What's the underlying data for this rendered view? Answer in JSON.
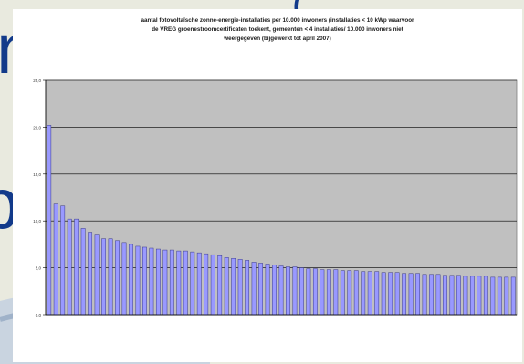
{
  "slide": {
    "colors": {
      "background": "#e9eadf",
      "swoosh": "#9fb2c9",
      "glyph": "#123a8a"
    },
    "glyphs": [
      "n",
      "bo",
      "("
    ]
  },
  "chart_data": {
    "type": "bar",
    "title": "aantal fotovoltaïsche zonne-energie-installaties per 10.000 inwoners (installaties < 10 kWp waarvoor\nde VREG groenestroomcertificaten toekent, gemeenten < 4 installaties/ 10.000 inwoners niet\nweergegeven (bijgewerkt tot april 2007)",
    "xlabel": "",
    "ylabel": "",
    "ylim": [
      0,
      25
    ],
    "yticks": [
      "0,0",
      "5,0",
      "10,0",
      "15,0",
      "20,0",
      "25,0"
    ],
    "grid": true,
    "plot_color": "#c0c0c0",
    "bar_color": "#9999ff",
    "bar_edge_color": "#3a3a8a",
    "values": [
      20.2,
      11.8,
      11.6,
      10.2,
      10.2,
      9.2,
      8.8,
      8.5,
      8.1,
      8.1,
      7.9,
      7.7,
      7.5,
      7.3,
      7.2,
      7.1,
      7.0,
      6.9,
      6.9,
      6.8,
      6.8,
      6.7,
      6.6,
      6.5,
      6.4,
      6.3,
      6.1,
      6.0,
      5.9,
      5.8,
      5.6,
      5.5,
      5.4,
      5.3,
      5.2,
      5.1,
      5.1,
      5.0,
      4.9,
      4.9,
      4.8,
      4.8,
      4.8,
      4.7,
      4.7,
      4.7,
      4.6,
      4.6,
      4.6,
      4.5,
      4.5,
      4.5,
      4.4,
      4.4,
      4.4,
      4.3,
      4.3,
      4.3,
      4.2,
      4.2,
      4.2,
      4.1,
      4.1,
      4.1,
      4.1,
      4.0,
      4.0,
      4.0,
      4.0
    ]
  }
}
